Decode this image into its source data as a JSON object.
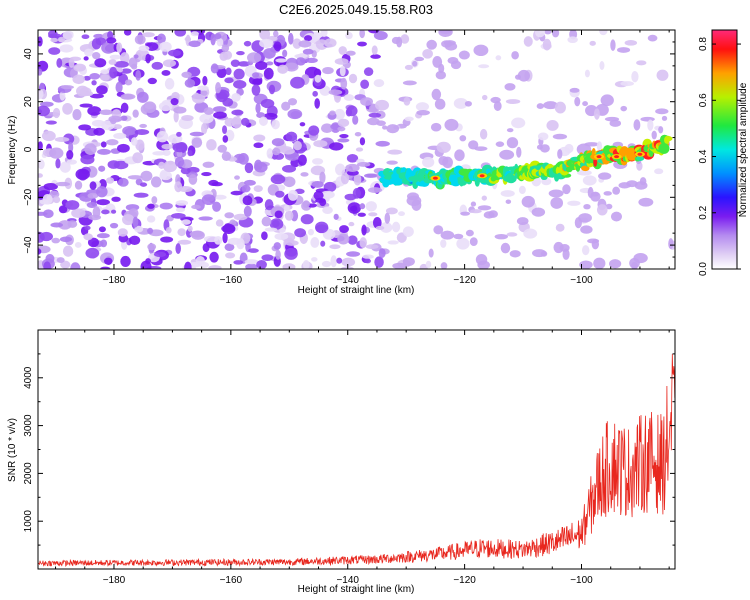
{
  "title": "C2E6.2025.049.15.58.R03",
  "colors": {
    "snr_line": "#e8271e",
    "colormap": [
      "#ffffff",
      "#cfb6ee",
      "#9a5cf0",
      "#6f14ee",
      "#1a1aff",
      "#00b0f0",
      "#00f0c0",
      "#2ee82e",
      "#e0f000",
      "#ff8800",
      "#ff0000",
      "#ff2070"
    ]
  },
  "chart_data": [
    {
      "type": "heatmap",
      "title": "C2E6.2025.049.15.58.R03",
      "xlabel": "Height of straight line (km)",
      "ylabel": "Frequency (Hz)",
      "xlim": [
        -193,
        -84
      ],
      "ylim": [
        -50,
        50
      ],
      "xticks": [
        -180,
        -160,
        -140,
        -120,
        -100
      ],
      "yticks": [
        -40,
        -20,
        0,
        20,
        40
      ],
      "colorbar": {
        "label": "Normalized spectral amplitude",
        "range": [
          0,
          0.85
        ],
        "ticks": [
          "0.0",
          "0.2",
          "0.4",
          "0.6",
          "0.8"
        ]
      },
      "features": {
        "signal_track": [
          {
            "x": -134,
            "y": -11.5
          },
          {
            "x": -125,
            "y": -12
          },
          {
            "x": -117,
            "y": -11
          },
          {
            "x": -110,
            "y": -10
          },
          {
            "x": -103,
            "y": -8
          },
          {
            "x": -97,
            "y": -3
          },
          {
            "x": -90,
            "y": -1.5
          },
          {
            "x": -86,
            "y": 2
          }
        ],
        "peak_amplitude": 0.85,
        "peak_x": -97,
        "noise_region_x": [
          -193,
          -134
        ]
      }
    },
    {
      "type": "line",
      "xlabel": "Height of straight line (km)",
      "ylabel": "SNR (10 * v/v)",
      "xlim": [
        -193,
        -84
      ],
      "ylim": [
        0,
        5000
      ],
      "xticks": [
        -180,
        -160,
        -140,
        -120,
        -100
      ],
      "yticks": [
        1000,
        2000,
        3000,
        4000
      ],
      "envelope": [
        {
          "x": -193,
          "y": 180
        },
        {
          "x": -150,
          "y": 220
        },
        {
          "x": -135,
          "y": 300
        },
        {
          "x": -125,
          "y": 450
        },
        {
          "x": -117,
          "y": 650
        },
        {
          "x": -110,
          "y": 600
        },
        {
          "x": -104,
          "y": 850
        },
        {
          "x": -100,
          "y": 1100
        },
        {
          "x": -97,
          "y": 2700
        },
        {
          "x": -95,
          "y": 3300
        },
        {
          "x": -92,
          "y": 3000
        },
        {
          "x": -89,
          "y": 3350
        },
        {
          "x": -86,
          "y": 3250
        },
        {
          "x": -84.5,
          "y": 4700
        }
      ]
    }
  ]
}
